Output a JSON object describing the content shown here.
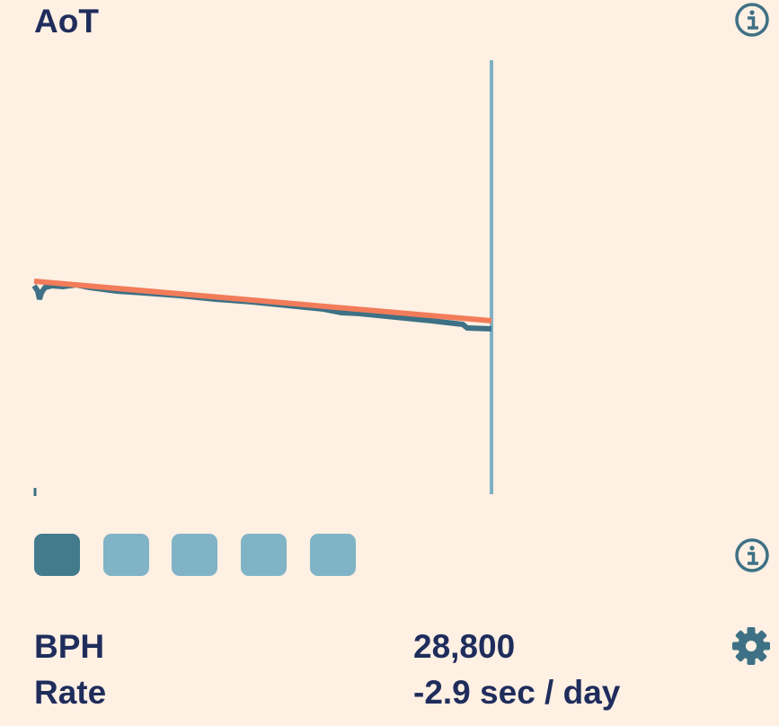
{
  "header": {
    "title": "AoT"
  },
  "stats": [
    {
      "label": "BPH",
      "value": "28,800"
    },
    {
      "label": "Rate",
      "value": "-2.9 sec / day"
    }
  ]
}
